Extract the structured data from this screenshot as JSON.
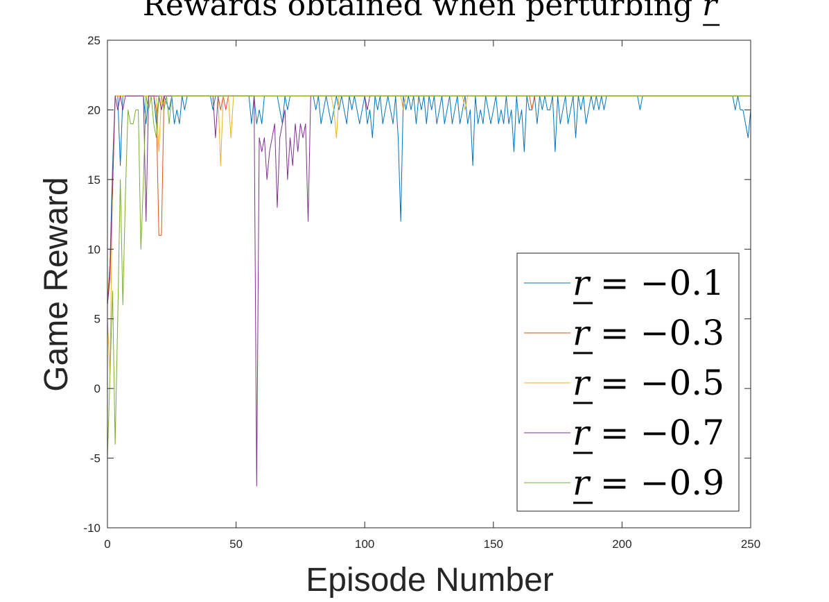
{
  "chart_data": {
    "type": "line",
    "title": "Rewards obtained when perturbing r",
    "title_prefix": "Rewards obtained when perturbing ",
    "title_symbol": "r",
    "xlabel": "Episode Number",
    "ylabel": "Game Reward",
    "xlim": [
      0,
      250
    ],
    "ylim": [
      -10,
      25
    ],
    "xticks": [
      0,
      50,
      100,
      150,
      200,
      250
    ],
    "yticks": [
      -10,
      -5,
      0,
      5,
      10,
      15,
      20,
      25
    ],
    "grid": false,
    "legend_position": "bottom-right",
    "colors": [
      "#0072BD",
      "#D95319",
      "#EDB120",
      "#7E2F8E",
      "#77AC30"
    ],
    "series": [
      {
        "name": "r = -0.1",
        "legend_symbol": "r",
        "legend_rest": " = −0.1",
        "color": "#0072BD",
        "points": [
          [
            0,
            6
          ],
          [
            1,
            9
          ],
          [
            2,
            16
          ],
          [
            3,
            21
          ],
          [
            4,
            21
          ],
          [
            5,
            16
          ],
          [
            6,
            21
          ],
          [
            7,
            21
          ],
          [
            8,
            21
          ],
          [
            14,
            21
          ],
          [
            15,
            19
          ],
          [
            16,
            21
          ],
          [
            18,
            21
          ],
          [
            19,
            19
          ],
          [
            20,
            21
          ],
          [
            22,
            21
          ],
          [
            24,
            20
          ],
          [
            25,
            21
          ],
          [
            26,
            19
          ],
          [
            27,
            20
          ],
          [
            28,
            19
          ],
          [
            29,
            21
          ],
          [
            30,
            20
          ],
          [
            31,
            21
          ],
          [
            40,
            21
          ],
          [
            41,
            20
          ],
          [
            42,
            21
          ],
          [
            55,
            21
          ],
          [
            56,
            19
          ],
          [
            57,
            21
          ],
          [
            58,
            19
          ],
          [
            59,
            20
          ],
          [
            60,
            19
          ],
          [
            61,
            21
          ],
          [
            66,
            21
          ],
          [
            67,
            20
          ],
          [
            68,
            19
          ],
          [
            69,
            21
          ],
          [
            70,
            20
          ],
          [
            71,
            21
          ],
          [
            80,
            21
          ],
          [
            81,
            20
          ],
          [
            82,
            21
          ],
          [
            83,
            19
          ],
          [
            84,
            20
          ],
          [
            85,
            21
          ],
          [
            86,
            20
          ],
          [
            87,
            19
          ],
          [
            88,
            20
          ],
          [
            89,
            21
          ],
          [
            90,
            20
          ],
          [
            91,
            21
          ],
          [
            92,
            20
          ],
          [
            93,
            19
          ],
          [
            94,
            21
          ],
          [
            95,
            20
          ],
          [
            96,
            21
          ],
          [
            97,
            20
          ],
          [
            98,
            19
          ],
          [
            99,
            20
          ],
          [
            100,
            21
          ],
          [
            101,
            19
          ],
          [
            102,
            20
          ],
          [
            103,
            18
          ],
          [
            104,
            21
          ],
          [
            105,
            20
          ],
          [
            106,
            21
          ],
          [
            107,
            19
          ],
          [
            108,
            20
          ],
          [
            109,
            21
          ],
          [
            110,
            20
          ],
          [
            111,
            19
          ],
          [
            112,
            21
          ],
          [
            113,
            18
          ],
          [
            114,
            12
          ],
          [
            115,
            21
          ],
          [
            116,
            20
          ],
          [
            117,
            21
          ],
          [
            118,
            20
          ],
          [
            119,
            21
          ],
          [
            120,
            19
          ],
          [
            121,
            21
          ],
          [
            122,
            20
          ],
          [
            123,
            21
          ],
          [
            124,
            19
          ],
          [
            125,
            21
          ],
          [
            126,
            20
          ],
          [
            127,
            21
          ],
          [
            128,
            19
          ],
          [
            129,
            20
          ],
          [
            130,
            21
          ],
          [
            131,
            19
          ],
          [
            132,
            20
          ],
          [
            133,
            21
          ],
          [
            134,
            19
          ],
          [
            135,
            20
          ],
          [
            136,
            21
          ],
          [
            137,
            19
          ],
          [
            138,
            20
          ],
          [
            139,
            21
          ],
          [
            140,
            19
          ],
          [
            141,
            20
          ],
          [
            142,
            16
          ],
          [
            143,
            21
          ],
          [
            144,
            19
          ],
          [
            145,
            20
          ],
          [
            146,
            19
          ],
          [
            147,
            21
          ],
          [
            148,
            20
          ],
          [
            149,
            19
          ],
          [
            150,
            20
          ],
          [
            151,
            21
          ],
          [
            152,
            19
          ],
          [
            153,
            20
          ],
          [
            154,
            19
          ],
          [
            155,
            21
          ],
          [
            156,
            19
          ],
          [
            157,
            20
          ],
          [
            158,
            17
          ],
          [
            159,
            21
          ],
          [
            160,
            19
          ],
          [
            161,
            20
          ],
          [
            162,
            17
          ],
          [
            163,
            21
          ],
          [
            164,
            20
          ],
          [
            165,
            20
          ],
          [
            166,
            21
          ],
          [
            167,
            19
          ],
          [
            168,
            21
          ],
          [
            169,
            20
          ],
          [
            170,
            21
          ],
          [
            171,
            20
          ],
          [
            172,
            20
          ],
          [
            173,
            21
          ],
          [
            174,
            17
          ],
          [
            175,
            21
          ],
          [
            176,
            19
          ],
          [
            177,
            20
          ],
          [
            178,
            21
          ],
          [
            179,
            19
          ],
          [
            180,
            20
          ],
          [
            181,
            21
          ],
          [
            182,
            18
          ],
          [
            183,
            21
          ],
          [
            184,
            20
          ],
          [
            185,
            21
          ],
          [
            186,
            19
          ],
          [
            187,
            20
          ],
          [
            188,
            21
          ],
          [
            189,
            20
          ],
          [
            190,
            21
          ],
          [
            191,
            20
          ],
          [
            192,
            21
          ],
          [
            193,
            20
          ],
          [
            194,
            21
          ],
          [
            206,
            21
          ],
          [
            207,
            20
          ],
          [
            208,
            21
          ],
          [
            243,
            21
          ],
          [
            244,
            20
          ],
          [
            245,
            21
          ],
          [
            246,
            20
          ],
          [
            247,
            20
          ],
          [
            248,
            19
          ],
          [
            249,
            18
          ],
          [
            250,
            20
          ]
        ]
      },
      {
        "name": "r = -0.3",
        "legend_symbol": "r",
        "legend_rest": " = −0.3",
        "color": "#D95319",
        "points": [
          [
            0,
            6
          ],
          [
            1,
            9
          ],
          [
            2,
            14
          ],
          [
            3,
            21
          ],
          [
            4,
            21
          ],
          [
            18,
            21
          ],
          [
            19,
            20
          ],
          [
            20,
            11
          ],
          [
            21,
            11
          ],
          [
            22,
            21
          ],
          [
            23,
            21
          ],
          [
            43,
            21
          ],
          [
            44,
            20
          ],
          [
            45,
            21
          ],
          [
            46,
            20
          ],
          [
            47,
            21
          ],
          [
            164,
            21
          ],
          [
            165,
            20
          ],
          [
            166,
            21
          ],
          [
            250,
            21
          ]
        ]
      },
      {
        "name": "r = -0.5",
        "legend_symbol": "r",
        "legend_rest": " = −0.5",
        "color": "#EDB120",
        "points": [
          [
            0,
            5
          ],
          [
            1,
            1
          ],
          [
            2,
            15
          ],
          [
            3,
            21
          ],
          [
            4,
            21
          ],
          [
            19,
            21
          ],
          [
            20,
            17
          ],
          [
            21,
            21
          ],
          [
            43,
            21
          ],
          [
            44,
            16
          ],
          [
            45,
            21
          ],
          [
            47,
            21
          ],
          [
            48,
            18
          ],
          [
            49,
            21
          ],
          [
            87,
            21
          ],
          [
            88,
            20
          ],
          [
            89,
            18
          ],
          [
            90,
            21
          ],
          [
            114,
            21
          ],
          [
            115,
            20
          ],
          [
            116,
            21
          ],
          [
            138,
            21
          ],
          [
            139,
            20
          ],
          [
            140,
            21
          ],
          [
            250,
            21
          ]
        ]
      },
      {
        "name": "r = -0.7",
        "legend_symbol": "r",
        "legend_rest": " = −0.7",
        "color": "#7E2F8E",
        "points": [
          [
            0,
            6
          ],
          [
            1,
            8
          ],
          [
            2,
            15
          ],
          [
            3,
            21
          ],
          [
            4,
            20
          ],
          [
            5,
            21
          ],
          [
            6,
            20
          ],
          [
            7,
            21
          ],
          [
            14,
            21
          ],
          [
            15,
            12
          ],
          [
            16,
            21
          ],
          [
            20,
            21
          ],
          [
            21,
            20
          ],
          [
            22,
            21
          ],
          [
            41,
            21
          ],
          [
            42,
            18
          ],
          [
            43,
            21
          ],
          [
            57,
            21
          ],
          [
            58,
            -7
          ],
          [
            59,
            18
          ],
          [
            60,
            17
          ],
          [
            61,
            18
          ],
          [
            62,
            15
          ],
          [
            63,
            17
          ],
          [
            64,
            18
          ],
          [
            65,
            19
          ],
          [
            66,
            13
          ],
          [
            67,
            18
          ],
          [
            68,
            19
          ],
          [
            69,
            20
          ],
          [
            70,
            15
          ],
          [
            71,
            18
          ],
          [
            72,
            16
          ],
          [
            73,
            19
          ],
          [
            74,
            17
          ],
          [
            75,
            19
          ],
          [
            76,
            18
          ],
          [
            77,
            19
          ],
          [
            78,
            12
          ],
          [
            79,
            21
          ],
          [
            100,
            21
          ],
          [
            101,
            20
          ],
          [
            102,
            21
          ],
          [
            250,
            21
          ]
        ]
      },
      {
        "name": "r = -0.9",
        "legend_symbol": "r",
        "legend_rest": " = −0.9",
        "color": "#77AC30",
        "points": [
          [
            0,
            -5
          ],
          [
            1,
            1
          ],
          [
            2,
            7
          ],
          [
            3,
            -4
          ],
          [
            4,
            5
          ],
          [
            5,
            15
          ],
          [
            6,
            6
          ],
          [
            7,
            14
          ],
          [
            8,
            20
          ],
          [
            9,
            19
          ],
          [
            10,
            19
          ],
          [
            11,
            20
          ],
          [
            12,
            20
          ],
          [
            13,
            10
          ],
          [
            14,
            15
          ],
          [
            15,
            21
          ],
          [
            16,
            20
          ],
          [
            17,
            21
          ],
          [
            18,
            19
          ],
          [
            19,
            18
          ],
          [
            20,
            21
          ],
          [
            21,
            21
          ],
          [
            22,
            20
          ],
          [
            23,
            21
          ],
          [
            24,
            19
          ],
          [
            25,
            21
          ],
          [
            250,
            21
          ]
        ]
      }
    ]
  }
}
